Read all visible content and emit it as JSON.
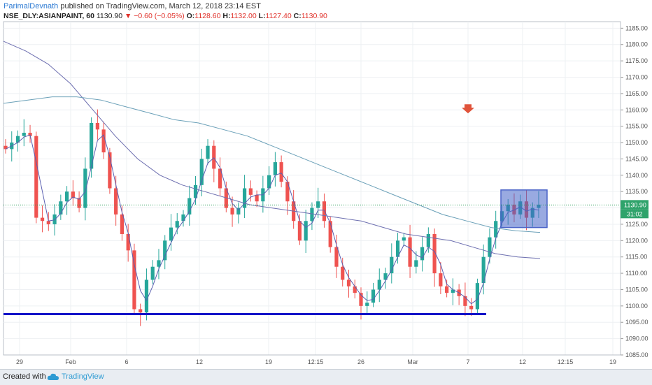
{
  "header": {
    "author": "ParimalDevnath",
    "published": "published on TradingView.com, March 12, 2018 23:14 EST",
    "symbol": "NSE_DLY:ASIANPAINT, 60",
    "last": "1130.90",
    "change": "−0.60 (−0.05%)",
    "o_label": "O:",
    "o": "1128.60",
    "h_label": "H:",
    "h": "1132.00",
    "l_label": "L:",
    "l": "1127.40",
    "c_label": "C:",
    "c": "1130.90"
  },
  "price_badge": "1130.90",
  "time_badge": "31:02",
  "footer": {
    "created": "Created with",
    "brand": "TradingView"
  },
  "colors": {
    "up": "#26a69a",
    "down": "#ef5350",
    "support": "#1414c8",
    "ma_fast": "#5a5fb0",
    "ma_mid": "#6d6fb0",
    "ma_slow": "#6aa0b8",
    "box": "#4a63c8",
    "arrow": "#e0533a",
    "price_line": "#2b9e5a"
  },
  "chart_data": {
    "type": "candlestick",
    "x_ticks": [
      "29",
      "Feb",
      "6",
      "12",
      "19",
      "12:15",
      "26",
      "Mar",
      "7",
      "12",
      "12:15",
      "19"
    ],
    "y_ticks": [
      1085,
      1090,
      1095,
      1100,
      1105,
      1110,
      1115,
      1120,
      1125,
      1130,
      1135,
      1140,
      1145,
      1150,
      1155,
      1160,
      1165,
      1170,
      1175,
      1180,
      1185
    ],
    "ylim": [
      1085,
      1187
    ],
    "support_level": 1097.5,
    "last_price": 1130.9,
    "consolidation_box": {
      "price_low": 1124,
      "price_high": 1135.5
    },
    "down_arrow_price": 1160,
    "closes_approx": [
      1148,
      1150,
      1152,
      1153,
      1152,
      1127,
      1126,
      1125,
      1128,
      1132,
      1135,
      1133,
      1130,
      1142,
      1156,
      1154,
      1147,
      1136,
      1128,
      1122,
      1117,
      1099,
      1098,
      1108,
      1112,
      1114,
      1120,
      1124,
      1126,
      1128,
      1133,
      1137,
      1145,
      1149,
      1142,
      1136,
      1130,
      1128,
      1130,
      1136,
      1134,
      1132,
      1136,
      1140,
      1144,
      1138,
      1132,
      1126,
      1120,
      1126,
      1130,
      1132,
      1126,
      1118,
      1112,
      1108,
      1106,
      1104,
      1100,
      1101,
      1105,
      1108,
      1110,
      1115,
      1120,
      1121,
      1112,
      1114,
      1118,
      1122,
      1110,
      1106,
      1104,
      1105,
      1103,
      1100,
      1099,
      1107,
      1115,
      1121,
      1126,
      1129,
      1131,
      1128,
      1132,
      1127,
      1130,
      1131
    ]
  }
}
